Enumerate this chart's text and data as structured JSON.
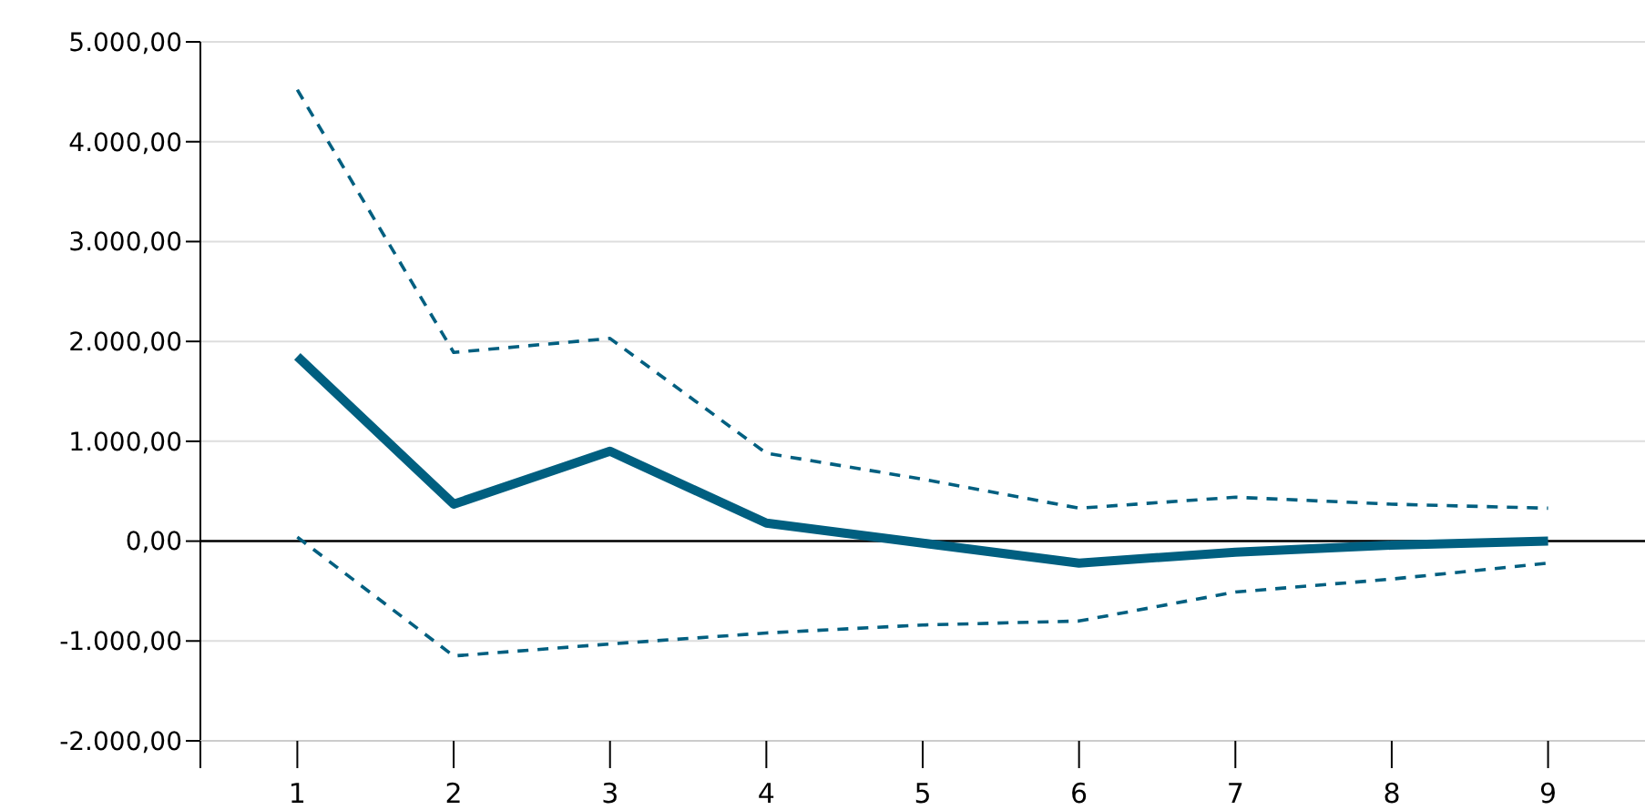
{
  "chart_data": {
    "type": "line",
    "x": [
      1,
      2,
      3,
      4,
      5,
      6,
      7,
      8,
      9
    ],
    "series": [
      {
        "color": "#005f80",
        "line_style": "solid",
        "values": [
          1850,
          370,
          900,
          180,
          -20,
          -220,
          -110,
          -40,
          0
        ]
      },
      {
        "color": "#005f80",
        "line_style": "dashed",
        "values": [
          4520,
          1890,
          2030,
          880,
          620,
          330,
          440,
          370,
          330
        ]
      },
      {
        "color": "#005f80",
        "line_style": "dashed",
        "values": [
          40,
          -1150,
          -1030,
          -920,
          -840,
          -800,
          -510,
          -380,
          -220
        ]
      }
    ],
    "xlim": [
      0.38,
      9.62
    ],
    "xticks": [
      {
        "value": 0.38,
        "label": null
      },
      1,
      2,
      3,
      4,
      5,
      6,
      7,
      8,
      9
    ],
    "ylim": [
      -2000,
      5000
    ],
    "yticks": [
      {
        "value": -2000,
        "label": "-2.000,00"
      },
      {
        "value": -1000,
        "label": "-1.000,00"
      },
      {
        "value": 0,
        "label": "0,00"
      },
      {
        "value": 1000,
        "label": "1.000,00"
      },
      {
        "value": 2000,
        "label": "2.000,00"
      },
      {
        "value": 3000,
        "label": "3.000,00"
      },
      {
        "value": 4000,
        "label": "4.000,00"
      },
      {
        "value": 5000,
        "label": "5.000,00"
      }
    ],
    "grid": "y",
    "marker": "none",
    "ref_lines": [
      {
        "axis": "y",
        "value": 0,
        "color": "#000000"
      }
    ]
  }
}
